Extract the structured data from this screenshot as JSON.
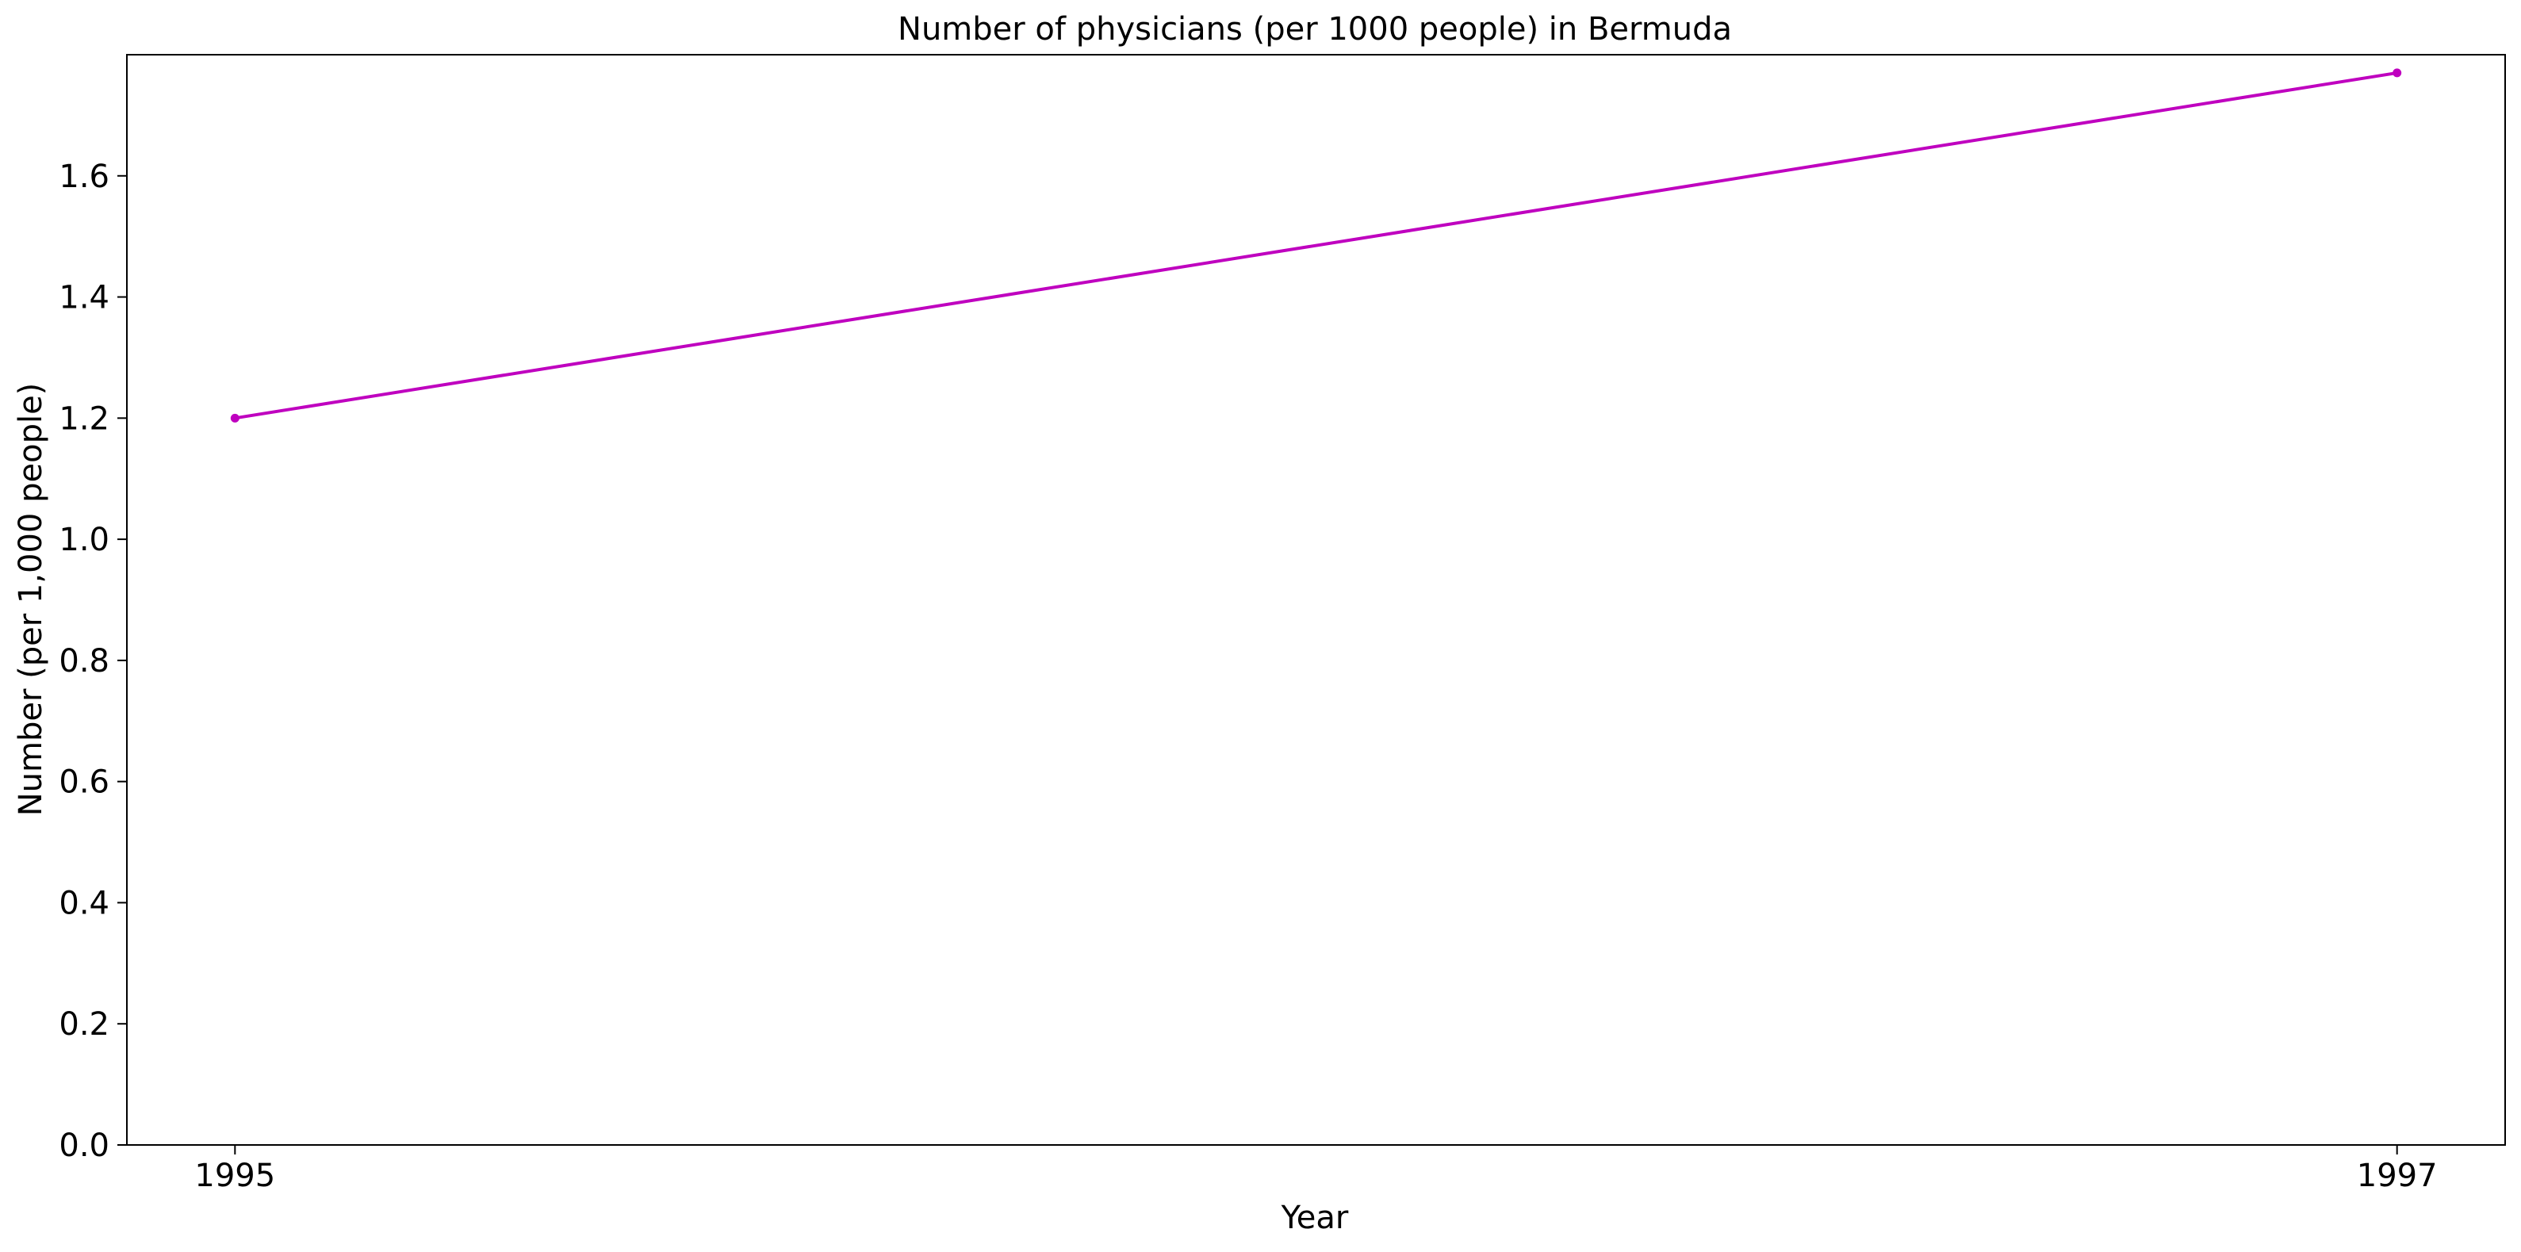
{
  "chart_data": {
    "type": "line",
    "title": "Number of physicians (per 1000 people) in Bermuda",
    "xlabel": "Year",
    "ylabel": "Number (per 1,000 people)",
    "x": [
      1995,
      1997
    ],
    "series": [
      {
        "values": [
          1.2,
          1.77
        ],
        "color": "#bf00bf"
      }
    ],
    "x_ticks": [
      "1995",
      "1997"
    ],
    "y_ticks": [
      "0.0",
      "0.2",
      "0.4",
      "0.6",
      "0.8",
      "1.0",
      "1.2",
      "1.4",
      "1.6"
    ],
    "xlim": [
      1994.9,
      1997.1
    ],
    "ylim": [
      0,
      1.8
    ],
    "grid": false,
    "legend": "none"
  }
}
